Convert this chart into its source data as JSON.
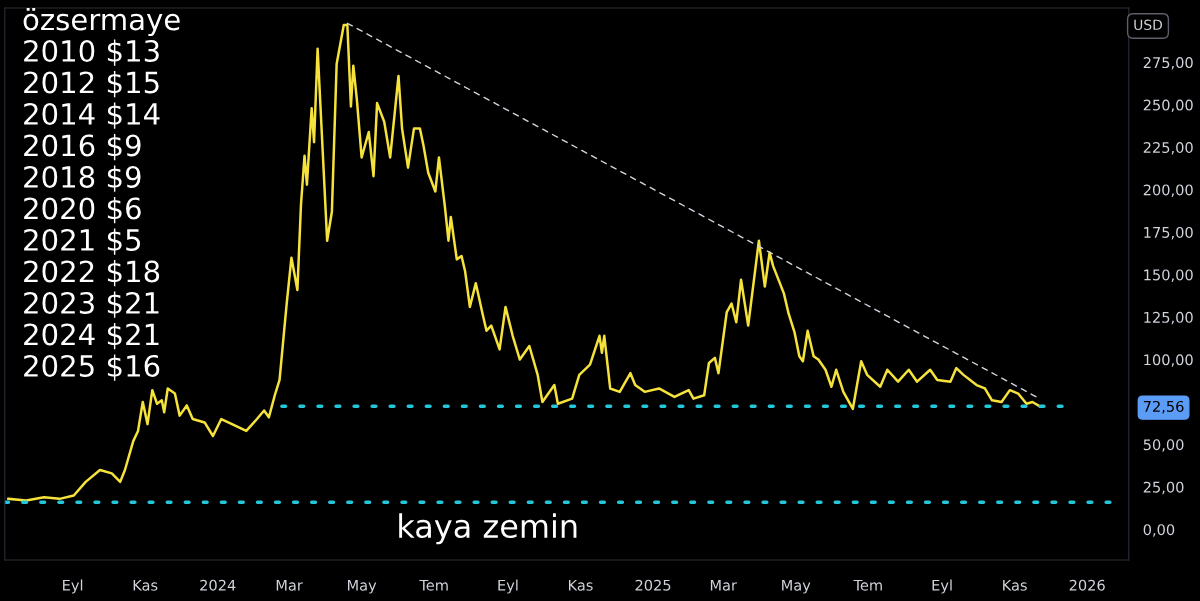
{
  "chart_data": {
    "type": "line",
    "ylabel": "USD",
    "annotations": [
      "özsermaye",
      "2010 $13",
      "2012 $15",
      "2014 $14",
      "2016 $9",
      "2018 $9",
      "2020 $6",
      "2021 $5",
      "2022 $18",
      "2023 $21",
      "2024 $21",
      "2025 $16",
      {
        "text": "kaya zemin",
        "x": "2024-08-15",
        "y": 16
      }
    ],
    "series": [
      {
        "color": "#f5e23b",
        "line_style": "solid",
        "x": [
          "2023-07-09",
          "2023-07-24",
          "2023-08-08",
          "2023-08-21",
          "2023-09-02",
          "2023-09-12",
          "2023-09-24",
          "2023-10-04",
          "2023-10-11",
          "2023-10-15",
          "2023-10-22",
          "2023-10-26",
          "2023-10-30",
          "2023-11-03",
          "2023-11-07",
          "2023-11-11",
          "2023-11-15",
          "2023-11-17",
          "2023-11-20",
          "2023-11-26",
          "2023-11-30",
          "2023-12-06",
          "2023-12-11",
          "2023-12-21",
          "2023-12-28",
          "2024-01-04",
          "2024-01-13",
          "2024-01-25",
          "2024-02-03",
          "2024-02-09",
          "2024-02-13",
          "2024-02-18",
          "2024-02-22",
          "2024-02-28",
          "2024-03-03",
          "2024-03-08",
          "2024-03-11",
          "2024-03-14",
          "2024-03-16",
          "2024-03-20",
          "2024-03-22",
          "2024-03-25",
          "2024-04-02",
          "2024-04-06",
          "2024-04-10",
          "2024-04-16",
          "2024-04-19",
          "2024-04-22",
          "2024-04-24",
          "2024-04-27",
          "2024-05-01",
          "2024-05-07",
          "2024-05-11",
          "2024-05-14",
          "2024-05-20",
          "2024-05-25",
          "2024-06-01",
          "2024-06-04",
          "2024-06-09",
          "2024-06-14",
          "2024-06-19",
          "2024-06-22",
          "2024-06-26",
          "2024-07-02",
          "2024-07-05",
          "2024-07-10",
          "2024-07-13",
          "2024-07-15",
          "2024-07-20",
          "2024-07-24",
          "2024-07-27",
          "2024-07-31",
          "2024-08-05",
          "2024-08-11",
          "2024-08-14",
          "2024-08-18",
          "2024-08-25",
          "2024-08-30",
          "2024-09-05",
          "2024-09-11",
          "2024-09-19",
          "2024-09-26",
          "2024-09-30",
          "2024-10-10",
          "2024-10-13",
          "2024-10-25",
          "2024-10-31",
          "2024-11-09",
          "2024-11-17",
          "2024-11-19",
          "2024-11-21",
          "2024-11-26",
          "2024-12-04",
          "2024-12-13",
          "2024-12-17",
          "2024-12-25",
          "2025-01-06",
          "2025-01-19",
          "2025-01-31",
          "2025-02-04",
          "2025-02-13",
          "2025-02-17",
          "2025-02-22",
          "2025-02-25",
          "2025-03-04",
          "2025-03-08",
          "2025-03-12",
          "2025-03-16",
          "2025-03-22",
          "2025-03-31",
          "2025-04-05",
          "2025-04-09",
          "2025-04-12",
          "2025-04-21",
          "2025-04-25",
          "2025-04-30",
          "2025-05-04",
          "2025-05-07",
          "2025-05-11",
          "2025-05-16",
          "2025-05-20",
          "2025-05-26",
          "2025-05-31",
          "2025-06-04",
          "2025-06-10",
          "2025-06-18",
          "2025-06-25",
          "2025-06-30",
          "2025-07-11",
          "2025-07-17",
          "2025-07-26",
          "2025-08-04",
          "2025-08-11",
          "2025-08-22",
          "2025-08-28",
          "2025-09-08",
          "2025-09-13",
          "2025-09-19",
          "2025-09-30",
          "2025-10-07",
          "2025-10-13",
          "2025-10-21",
          "2025-10-28",
          "2025-11-04",
          "2025-11-11",
          "2025-11-16",
          "2025-11-22"
        ],
        "values": [
          18,
          17,
          19,
          18,
          20,
          28,
          35,
          33,
          28,
          35,
          52,
          58,
          75,
          62,
          82,
          74,
          76,
          69,
          83,
          80,
          67,
          73,
          65,
          63,
          55,
          65,
          62,
          58,
          65,
          70,
          66,
          79,
          88,
          133,
          160,
          141,
          191,
          220,
          203,
          248,
          228,
          283,
          170,
          187,
          274,
          297,
          297,
          249,
          273,
          253,
          219,
          234,
          208,
          251,
          240,
          219,
          267,
          236,
          213,
          236,
          236,
          226,
          210,
          199,
          219,
          190,
          170,
          184,
          159,
          161,
          152,
          131,
          145,
          126,
          117,
          120,
          106,
          131,
          114,
          100,
          108,
          91,
          75,
          85,
          74,
          77,
          91,
          97,
          114,
          104,
          114,
          83,
          81,
          92,
          85,
          81,
          83,
          78,
          82,
          77,
          79,
          98,
          101,
          92,
          128,
          133,
          122,
          147,
          120,
          170,
          143,
          163,
          155,
          139,
          127,
          116,
          102,
          99,
          117,
          102,
          100,
          94,
          84,
          94,
          81,
          71,
          99,
          91,
          84,
          94,
          87,
          94,
          87,
          94,
          88,
          87,
          95,
          91,
          85,
          83,
          76,
          75,
          82,
          80,
          74,
          75,
          72.56
        ]
      },
      {
        "color": "#d1d4dc",
        "line_style": "dashed",
        "x": [
          "2024-04-19",
          "2025-11-22"
        ],
        "values": [
          298,
          77
        ]
      },
      {
        "color": "#26c6da",
        "line_style": "dotted",
        "x": [
          "2024-02-24",
          "2025-12-15"
        ],
        "values": [
          72.5,
          72.5
        ]
      },
      {
        "color": "#26c6da",
        "line_style": "dotted",
        "x": [
          "2023-07-06",
          "2026-01-26"
        ],
        "values": [
          16,
          16
        ]
      }
    ],
    "xlim": [
      "2023-07-06",
      "2026-02-05"
    ],
    "xticks": [
      {
        "value": "2023-09-01",
        "label": "Eyl"
      },
      {
        "value": "2023-11-01",
        "label": "Kas"
      },
      {
        "value": "2024-01-01",
        "label": "2024"
      },
      {
        "value": "2024-03-01",
        "label": "Mar"
      },
      {
        "value": "2024-05-01",
        "label": "May"
      },
      {
        "value": "2024-07-01",
        "label": "Tem"
      },
      {
        "value": "2024-09-01",
        "label": "Eyl"
      },
      {
        "value": "2024-11-01",
        "label": "Kas"
      },
      {
        "value": "2025-01-01",
        "label": "2025"
      },
      {
        "value": "2025-03-01",
        "label": "Mar"
      },
      {
        "value": "2025-05-01",
        "label": "May"
      },
      {
        "value": "2025-07-01",
        "label": "Tem"
      },
      {
        "value": "2025-09-01",
        "label": "Eyl"
      },
      {
        "value": "2025-11-01",
        "label": "Kas"
      },
      {
        "value": "2026-01-01",
        "label": "2026"
      }
    ],
    "ylim": [
      -18,
      307
    ],
    "yticks": [
      {
        "value": 0,
        "label": "0,00"
      },
      {
        "value": 25,
        "label": "25,00"
      },
      {
        "value": 50,
        "label": "50,00"
      },
      {
        "value": 72.56,
        "label": "72,56"
      },
      {
        "value": 100,
        "label": "100,00"
      },
      {
        "value": 125,
        "label": "125,00"
      },
      {
        "value": 150,
        "label": "150,00"
      },
      {
        "value": 175,
        "label": "175,00"
      },
      {
        "value": 200,
        "label": "200,00"
      },
      {
        "value": 225,
        "label": "225,00"
      },
      {
        "value": 250,
        "label": "250,00"
      },
      {
        "value": 275,
        "label": "275,00"
      }
    ],
    "grid": false,
    "legend": false
  }
}
